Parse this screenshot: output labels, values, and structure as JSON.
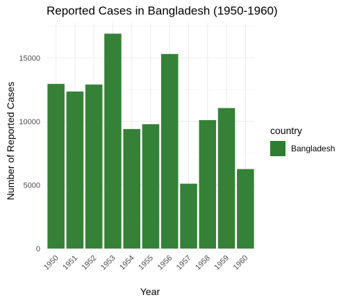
{
  "chart_data": {
    "type": "bar",
    "title": "Reported Cases in Bangladesh (1950-1960)",
    "xlabel": "Year",
    "ylabel": "Number of Reported Cases",
    "categories": [
      "1950",
      "1951",
      "1952",
      "1953",
      "1954",
      "1955",
      "1956",
      "1957",
      "1958",
      "1959",
      "1960"
    ],
    "series": [
      {
        "name": "Bangladesh",
        "values": [
          12950,
          12350,
          12900,
          16900,
          9400,
          9780,
          15300,
          5100,
          10100,
          11050,
          6250
        ]
      }
    ],
    "ylim": [
      0,
      17745
    ],
    "yticks": [
      0,
      5000,
      10000,
      15000
    ],
    "ytick_labels": [
      "0",
      "5000",
      "10000",
      "15000"
    ],
    "grid": true,
    "legend": {
      "title": "country",
      "position": "right"
    },
    "colors": {
      "bar": "#2e7d32",
      "grid_major": "#ebebeb",
      "grid_minor": "#f5f5f5"
    }
  }
}
